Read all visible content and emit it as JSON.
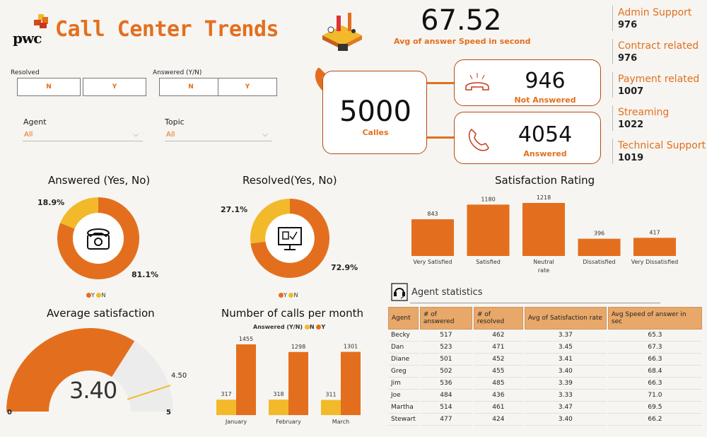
{
  "header": {
    "logo_text": "pwc",
    "title": "Call Center Trends",
    "avg_speed_value": "67.52",
    "avg_speed_label": "Avg of  answer Speed in second"
  },
  "slicers": {
    "resolved": {
      "label": "Resolved",
      "options": [
        "N",
        "Y"
      ]
    },
    "answered": {
      "label": "Answered (Y/N)",
      "options": [
        "N",
        "Y"
      ]
    },
    "agent": {
      "label": "Agent",
      "value": "All"
    },
    "topic": {
      "label": "Topic",
      "value": "All"
    }
  },
  "kpis": {
    "calls": {
      "value": "5000",
      "label": "Calles"
    },
    "not_answered": {
      "value": "946",
      "label": "Not Answered"
    },
    "answered": {
      "value": "4054",
      "label": "Answered"
    }
  },
  "topics": [
    {
      "name": "Admin Support",
      "value": "976"
    },
    {
      "name": "Contract related",
      "value": "976"
    },
    {
      "name": "Payment related",
      "value": "1007"
    },
    {
      "name": "Streaming",
      "value": "1022"
    },
    {
      "name": "Technical Support",
      "value": "1019"
    }
  ],
  "colors": {
    "accent": "#e36f1e",
    "secondary": "#f2b92b",
    "card_border": "#b64a14"
  },
  "chart_data": [
    {
      "type": "pie",
      "title": "Answered (Yes, No)",
      "slices": [
        {
          "name": "Y",
          "value": 81.1
        },
        {
          "name": "N",
          "value": 18.9
        }
      ],
      "labels": [
        "81.1%",
        "18.9%"
      ],
      "legend": [
        "Y",
        "N"
      ],
      "icon": "telephone-icon"
    },
    {
      "type": "pie",
      "title": "Resolved(Yes, No)",
      "slices": [
        {
          "name": "Y",
          "value": 72.9
        },
        {
          "name": "N",
          "value": 27.1
        }
      ],
      "labels": [
        "72.9%",
        "27.1%"
      ],
      "legend": [
        "Y",
        "N"
      ],
      "icon": "monitor-check-icon"
    },
    {
      "type": "bar",
      "title": "Satisfaction Rating",
      "categories": [
        "Very Satisfied",
        "Satisfied",
        "Neutral rate",
        "Dissatisfied",
        "Very Dissatisfied"
      ],
      "values": [
        843,
        1180,
        1218,
        396,
        417
      ]
    },
    {
      "type": "gauge",
      "title": "Average satisfaction",
      "value": 3.4,
      "value_label": "3.40",
      "min": 0,
      "max": 5,
      "target": 4.5,
      "min_label": "0",
      "max_label": "5",
      "target_label": "4.50"
    },
    {
      "type": "bar",
      "title": "Number of calls per month",
      "legend_title": "Answered (Y/N)",
      "categories": [
        "January",
        "February",
        "March"
      ],
      "series": [
        {
          "name": "N",
          "values": [
            317,
            318,
            311
          ]
        },
        {
          "name": "Y",
          "values": [
            1455,
            1298,
            1301
          ]
        }
      ]
    },
    {
      "type": "table",
      "title": "Agent statistics",
      "columns": [
        "Agent",
        "# of answered",
        "# of resolved",
        "Avg of Satisfaction rate",
        "Avg Speed of answer in sec"
      ],
      "rows": [
        [
          "Becky",
          "517",
          "462",
          "3.37",
          "65.3"
        ],
        [
          "Dan",
          "523",
          "471",
          "3.45",
          "67.3"
        ],
        [
          "Diane",
          "501",
          "452",
          "3.41",
          "66.3"
        ],
        [
          "Greg",
          "502",
          "455",
          "3.40",
          "68.4"
        ],
        [
          "Jim",
          "536",
          "485",
          "3.39",
          "66.3"
        ],
        [
          "Joe",
          "484",
          "436",
          "3.33",
          "71.0"
        ],
        [
          "Martha",
          "514",
          "461",
          "3.47",
          "69.5"
        ],
        [
          "Stewart",
          "477",
          "424",
          "3.40",
          "66.2"
        ]
      ]
    }
  ]
}
